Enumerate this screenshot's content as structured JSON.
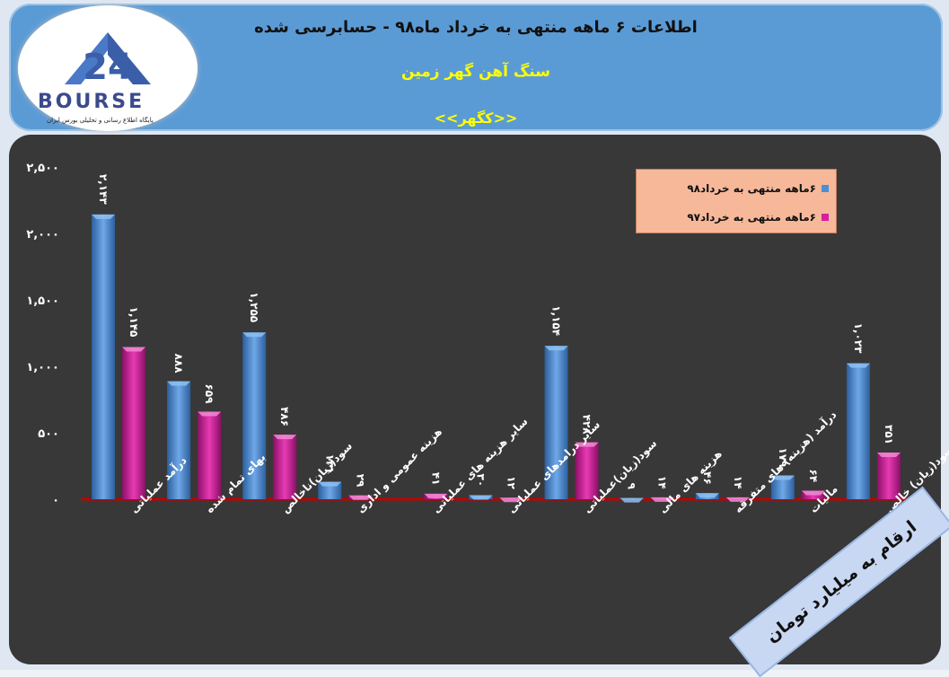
{
  "header": {
    "title": "اطلاعات ۶ ماهه منتهی به خرداد ماه۹۸ - حسابرسی شده",
    "subtitle": "سنگ آهن گهر زمین",
    "ticker": "<<کگهر>>"
  },
  "logo": {
    "word": "BOURSE",
    "number_mark": "24",
    "caption": "پایگاه اطلاع رسانی و تحلیلی بورس ایران"
  },
  "unit_note": "ارقام به میلیارد تومان",
  "colors": {
    "series98": "#4a8fd6",
    "series97": "#d61f9e",
    "axis": "#c00000",
    "plot_bg": "#383838"
  },
  "chart_data": {
    "type": "bar",
    "ylim": [
      0,
      2500
    ],
    "yticks": [
      0,
      500,
      1000,
      1500,
      2000,
      2500
    ],
    "ytick_labels": [
      "۰",
      "۵۰۰",
      "۱,۰۰۰",
      "۱,۵۰۰",
      "۲,۰۰۰",
      "۲,۵۰۰"
    ],
    "legend_position": "top-right",
    "categories": [
      "درآمد عملیاتی",
      "بهای تمام شده",
      "سود(زیان)ناخالص",
      "هزینه عمومی و اداری",
      "سایر هزینه های عملیاتی",
      "سایر درامدهای عملیاتی",
      "سود(زیان)عملیاتی",
      "هزینه های مالی",
      "درآمد (هزینه) های متفرقه",
      "مالیات",
      "سود(زیان) خالص"
    ],
    "series": [
      {
        "name": "۶ماهه منتهی به خرداد۹۸",
        "values": [
          2143,
          888,
          1255,
          131,
          0,
          30,
          1154,
          9,
          46,
          179,
          1023
        ],
        "labels": [
          "۲,۱۴۳",
          "۸۸۸",
          "۱,۲۵۵",
          "۱۳۱",
          "",
          "۳۰",
          "۱,۱۵۴",
          "۹",
          "۴۶",
          "۱۷۹",
          "۱,۰۲۳"
        ]
      },
      {
        "name": "۶ماهه منتهی به خرداد۹۷",
        "values": [
          1145,
          659,
          486,
          29,
          41,
          12,
          428,
          14,
          14,
          64,
          351
        ],
        "labels": [
          "۱,۱۴۵",
          "۶۵۹",
          "۴۸۶",
          "۲۹",
          "۴۱",
          "۱۲",
          "۴۲۸",
          "۱۴",
          "۱۴",
          "۶۴",
          "۳۵۱"
        ]
      }
    ]
  }
}
